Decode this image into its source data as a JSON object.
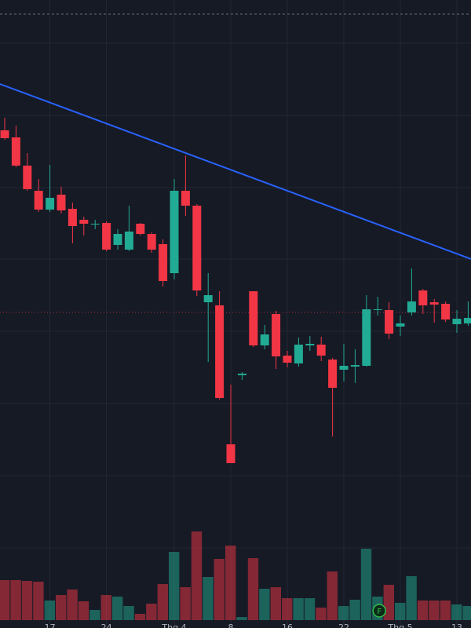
{
  "chart_data": {
    "type": "candlestick",
    "categories": [
      null,
      null,
      null,
      null,
      "17",
      null,
      null,
      null,
      null,
      "24",
      null,
      null,
      null,
      null,
      null,
      "Thg 4",
      null,
      null,
      null,
      null,
      "8",
      null,
      null,
      null,
      null,
      "16",
      null,
      null,
      null,
      null,
      "22",
      null,
      null,
      null,
      null,
      "Thg 5",
      null,
      null,
      null,
      null,
      "13",
      null
    ],
    "open": [
      634,
      625,
      589,
      557,
      533,
      552,
      534,
      520,
      514,
      516,
      488,
      482,
      515,
      502,
      489,
      452,
      557,
      538,
      415,
      411,
      234,
      322,
      429,
      360,
      400,
      347,
      337,
      360,
      361,
      342,
      329,
      333,
      334,
      405,
      405,
      384,
      402,
      430,
      415,
      413,
      387,
      388
    ],
    "high": [
      650,
      640,
      605,
      572,
      590,
      562,
      542,
      524,
      520,
      518,
      508,
      538,
      516,
      504,
      495,
      572,
      602,
      540,
      452,
      429,
      310,
      326,
      429,
      386,
      404,
      353,
      370,
      372,
      371,
      344,
      362,
      355,
      424,
      422,
      415,
      398,
      458,
      432,
      419,
      416,
      405,
      416
    ],
    "low": [
      622,
      587,
      557,
      530,
      530,
      528,
      490,
      500,
      508,
      480,
      482,
      480,
      500,
      478,
      435,
      444,
      525,
      423,
      339,
      291,
      210,
      316,
      358,
      355,
      330,
      332,
      333,
      353,
      340,
      244,
      314,
      312,
      333,
      398,
      368,
      372,
      398,
      400,
      389,
      390,
      376,
      385
    ],
    "close": [
      624,
      589,
      559,
      533,
      548,
      532,
      512,
      515,
      515,
      482,
      502,
      505,
      502,
      482,
      442,
      557,
      538,
      430,
      424,
      293,
      210,
      324,
      360,
      374,
      346,
      338,
      361,
      362,
      347,
      306,
      334,
      335,
      406,
      406,
      375,
      388,
      416,
      411,
      412,
      393,
      394,
      395
    ],
    "volume": [
      51,
      51,
      50,
      49,
      25,
      32,
      39,
      24,
      13,
      32,
      30,
      18,
      8,
      21,
      46,
      87,
      42,
      113,
      55,
      78,
      95,
      4,
      79,
      40,
      42,
      28,
      28,
      28,
      16,
      62,
      18,
      26,
      91,
      30,
      45,
      22,
      56,
      25,
      25,
      25,
      20,
      18
    ],
    "ylim": [
      0,
      800
    ],
    "vlim": [
      0,
      130
    ],
    "up_color": "#22ab94",
    "down_color": "#f23645",
    "marker": {
      "label": "F",
      "index": 33
    }
  }
}
